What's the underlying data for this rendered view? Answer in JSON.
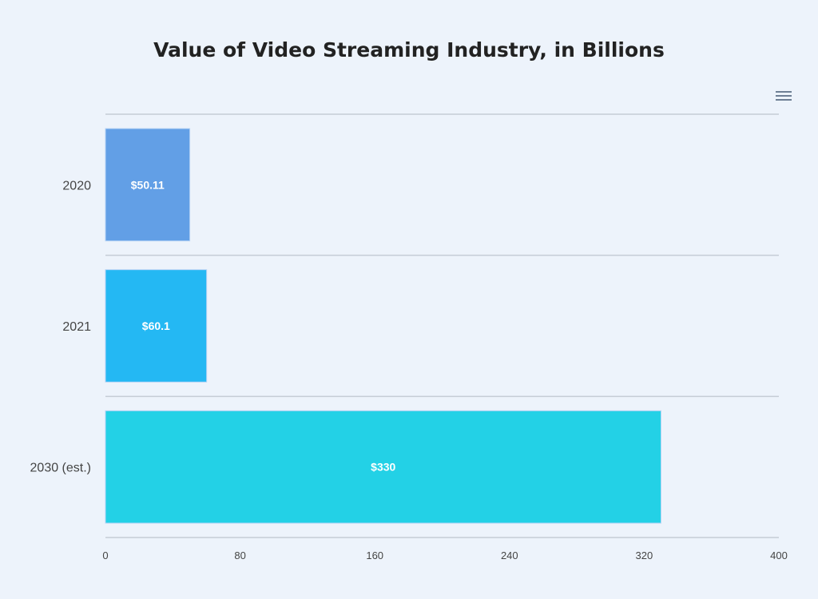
{
  "chart_data": {
    "type": "bar",
    "orientation": "horizontal",
    "title": "Value of Video Streaming Industry, in Billions",
    "categories": [
      "2020",
      "2021",
      "2030 (est.)"
    ],
    "values": [
      50.11,
      60.1,
      330
    ],
    "data_labels": [
      "$50.11",
      "$60.1",
      "$330"
    ],
    "colors": [
      "#629fe6",
      "#24b8f3",
      "#23d1e6"
    ],
    "xlim": [
      0,
      400
    ],
    "x_ticks": [
      0,
      80,
      160,
      240,
      320,
      400
    ],
    "grid": true,
    "xlabel": "",
    "ylabel": ""
  },
  "menu_icon": "hamburger-menu-icon"
}
